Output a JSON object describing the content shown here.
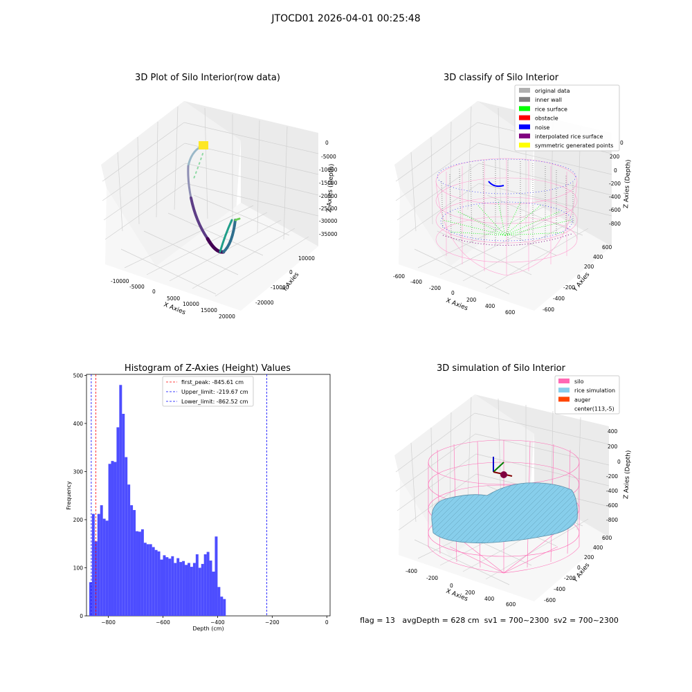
{
  "suptitle": "JTOCD01 2026-04-01 00:25:48",
  "footer": "flag = 13   avgDepth = 628 cm  sv1 = 700~2300  sv2 = 700~2300",
  "colors": {
    "hist_bar": "#4d4dff",
    "first_peak": "#ff0000",
    "limits": "#0000ff",
    "silo": "#ff69b4",
    "rice_sim": "#87ceeb",
    "auger": "#ff4500",
    "grey": "#b0b0b0",
    "inner_wall": "#808080",
    "rice_surface": "#00ff00",
    "obstacle": "#ff0000",
    "noise": "#0000ff",
    "interp": "#800080",
    "symmetric": "#ffff00"
  },
  "chart_data": [
    {
      "type": "scatter3d",
      "title": "3D Plot of Silo Interior(row data)",
      "xlabel": "X Axies",
      "ylabel": "Y Axies",
      "zlabel": "Z Axies (Depth)",
      "x_ticks": [
        "-10000",
        "-5000",
        "0",
        "5000",
        "10000",
        "15000",
        "20000"
      ],
      "y_ticks": [
        "-20000",
        "-10000",
        "0",
        "10000"
      ],
      "z_ticks": [
        "0",
        "-5000",
        "-10000",
        "-15000",
        "-20000",
        "-25000",
        "-30000",
        "-35000"
      ],
      "colormap": "viridis"
    },
    {
      "type": "scatter3d",
      "title": "3D classify of Silo Interior",
      "xlabel": "X Axies",
      "ylabel": "Y Axies",
      "zlabel": "Z Axies (Depth)",
      "x_ticks": [
        "-600",
        "-400",
        "-200",
        "0",
        "200",
        "400",
        "600"
      ],
      "y_ticks": [
        "-600",
        "-400",
        "-200",
        "0",
        "200",
        "400",
        "600"
      ],
      "z_ticks": [
        "200",
        "0",
        "-200",
        "-400",
        "-600",
        "-800"
      ],
      "z_partial_tick": "0",
      "legend": [
        "original data",
        "inner wall",
        "rice surface",
        "obstacle",
        "noise",
        "interpolated rice surface",
        "symmetric generated points"
      ],
      "legend_colors": [
        "#b0b0b0",
        "#808080",
        "#00ff00",
        "#ff0000",
        "#0000ff",
        "#800080",
        "#ffff00"
      ],
      "legend_position": "top-right"
    },
    {
      "type": "bar",
      "title": "Histogram of Z-Axies (Height) Values",
      "xlabel": "Depth (cm)",
      "ylabel": "Frequency",
      "bin_start": -870,
      "bin_width": 10,
      "values": [
        70,
        212,
        155,
        212,
        230,
        202,
        198,
        316,
        322,
        320,
        392,
        480,
        420,
        330,
        273,
        230,
        220,
        176,
        175,
        180,
        152,
        149,
        149,
        143,
        137,
        134,
        117,
        126,
        122,
        119,
        124,
        110,
        120,
        112,
        114,
        106,
        110,
        102,
        110,
        128,
        100,
        108,
        128,
        133,
        115,
        92,
        165,
        60,
        40,
        35
      ],
      "xlim": [
        -880,
        12
      ],
      "ylim": [
        0,
        502
      ],
      "x_ticks": [
        -800,
        -600,
        -400,
        -200,
        0
      ],
      "y_ticks": [
        0,
        100,
        200,
        300,
        400,
        500
      ],
      "vlines": [
        {
          "label": "first_peak: -845.61 cm",
          "x": -845.61,
          "color": "#ff0000"
        },
        {
          "label": "Upper_limit: -219.67 cm",
          "x": -219.67,
          "color": "#0000ff"
        },
        {
          "label": "Lower_limit: -862.52 cm",
          "x": -862.52,
          "color": "#0000ff"
        }
      ],
      "legend_position": "top-center"
    },
    {
      "type": "surface3d",
      "title": "3D simulation of Silo Interior",
      "xlabel": "X Axies",
      "ylabel": "Y Axies",
      "zlabel": "Z Axies (Depth)",
      "x_ticks": [
        "-400",
        "-200",
        "0",
        "200",
        "400",
        "600"
      ],
      "y_ticks": [
        "-600",
        "-400",
        "-200",
        "0",
        "200",
        "400",
        "600"
      ],
      "z_ticks": [
        "400",
        "200",
        "0",
        "-200",
        "-400",
        "-600",
        "-800"
      ],
      "legend": [
        "silo",
        "rice simulation",
        "auger",
        "center(113,-5)"
      ],
      "legend_colors": [
        "#ff69b4",
        "#87ceeb",
        "#ff4500",
        null
      ],
      "legend_position": "top-right"
    }
  ]
}
